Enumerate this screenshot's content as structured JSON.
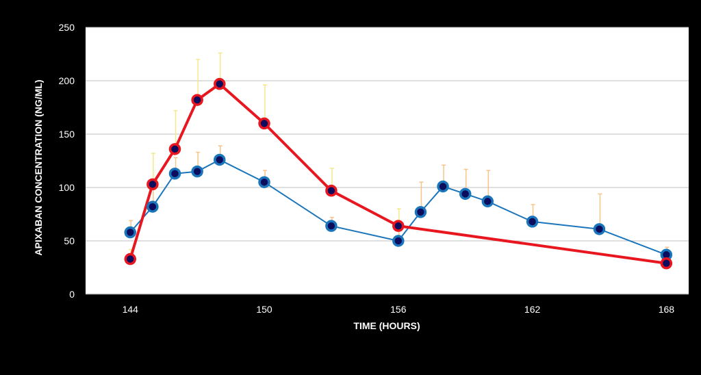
{
  "chart_data": {
    "type": "line",
    "xlabel": "TIME (HOURS)",
    "ylabel": "APIXABAN CONCENTRATION (NG/ML)",
    "xlim": [
      142,
      169
    ],
    "ylim": [
      0,
      250
    ],
    "xticks": [
      144,
      150,
      156,
      162,
      168
    ],
    "yticks": [
      0,
      50,
      100,
      150,
      200,
      250
    ],
    "grid": "horizontal",
    "legend": "none",
    "colors": {
      "background": "#000000",
      "plot_area": "#ffffff",
      "gridline": "#bfbfbf",
      "axis_text": "#ffffff",
      "marker_fill": "#0d0d5e"
    },
    "series": [
      {
        "color": "#e8171f",
        "marker_ring": "#e8171f",
        "error_color": "#f5e88a",
        "x": [
          144,
          145,
          146,
          147,
          148,
          150,
          153,
          156,
          168
        ],
        "y": [
          33,
          103,
          136,
          182,
          197,
          160,
          97,
          64,
          29
        ],
        "error_upper": [
          42,
          132,
          172,
          220,
          226,
          196,
          118,
          80,
          40
        ]
      },
      {
        "color": "#1b75bb",
        "marker_ring": "#1b75bb",
        "error_color": "#f6c48a",
        "x": [
          144,
          145,
          146,
          147,
          148,
          150,
          153,
          156,
          157,
          158,
          159,
          160,
          162,
          165,
          168
        ],
        "y": [
          58,
          82,
          113,
          115,
          126,
          105,
          64,
          50,
          77,
          101,
          94,
          87,
          68,
          61,
          37
        ],
        "error_upper": [
          69,
          98,
          128,
          133,
          139,
          116,
          72,
          66,
          105,
          121,
          117,
          116,
          84,
          94,
          44
        ]
      }
    ]
  }
}
